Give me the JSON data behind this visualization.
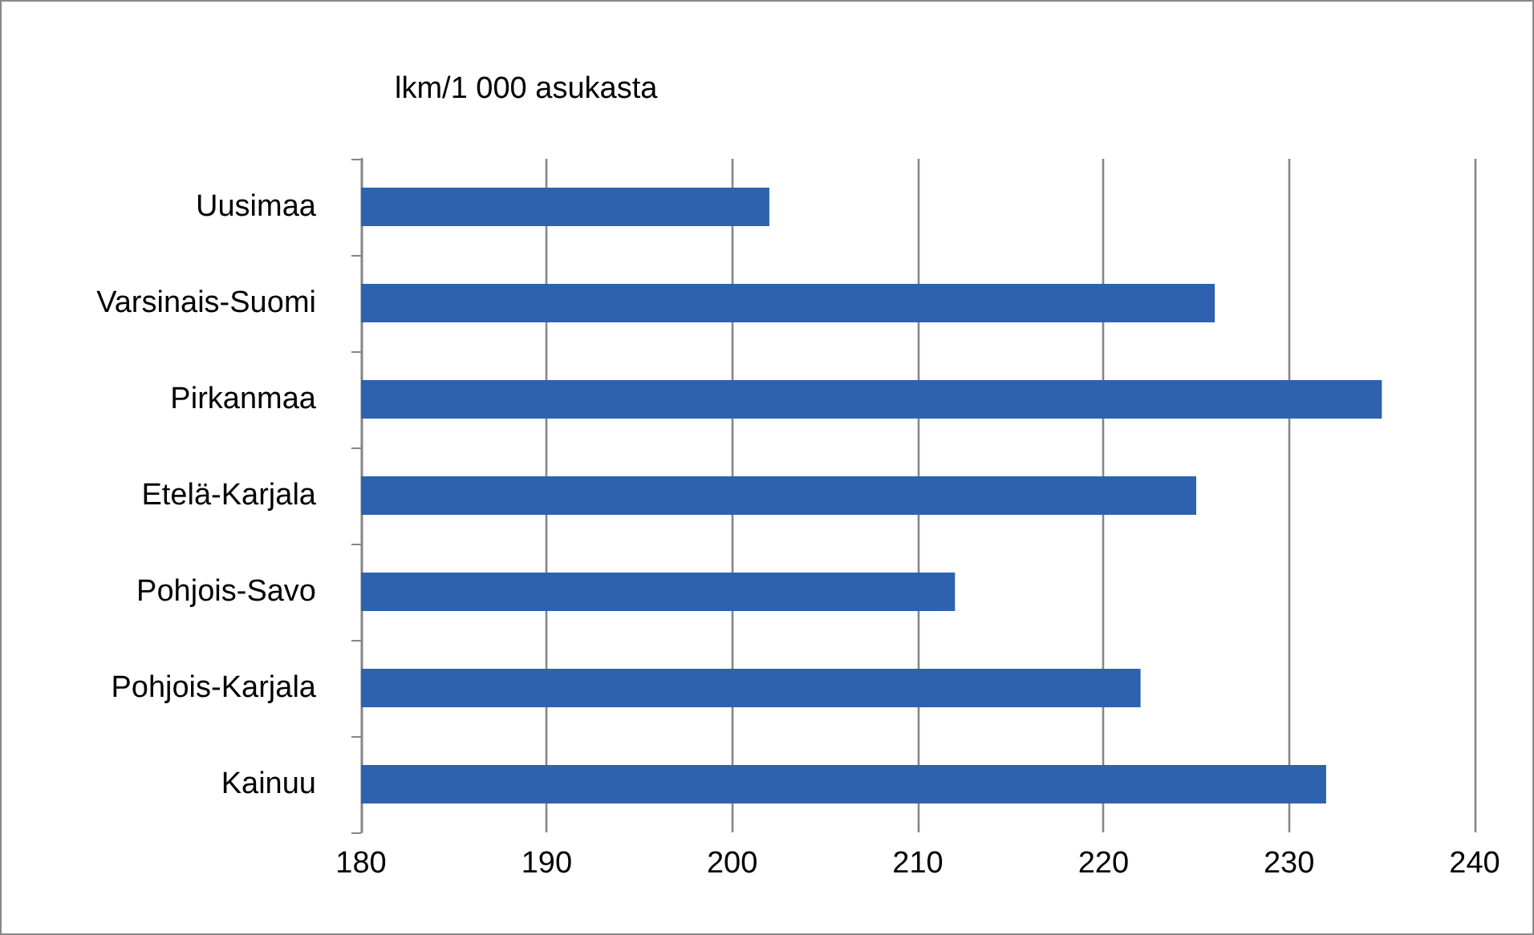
{
  "chart_data": {
    "type": "bar",
    "orientation": "horizontal",
    "title": "lkm/1 000 asukasta",
    "categories": [
      "Uusimaa",
      "Varsinais-Suomi",
      "Pirkanmaa",
      "Etelä-Karjala",
      "Pohjois-Savo",
      "Pohjois-Karjala",
      "Kainuu"
    ],
    "values": [
      202,
      226,
      235,
      225,
      212,
      222,
      232
    ],
    "color": "#2e62ae",
    "xlim": [
      180,
      240
    ],
    "xticks": [
      180,
      190,
      200,
      210,
      220,
      230,
      240
    ],
    "grid": "x"
  }
}
